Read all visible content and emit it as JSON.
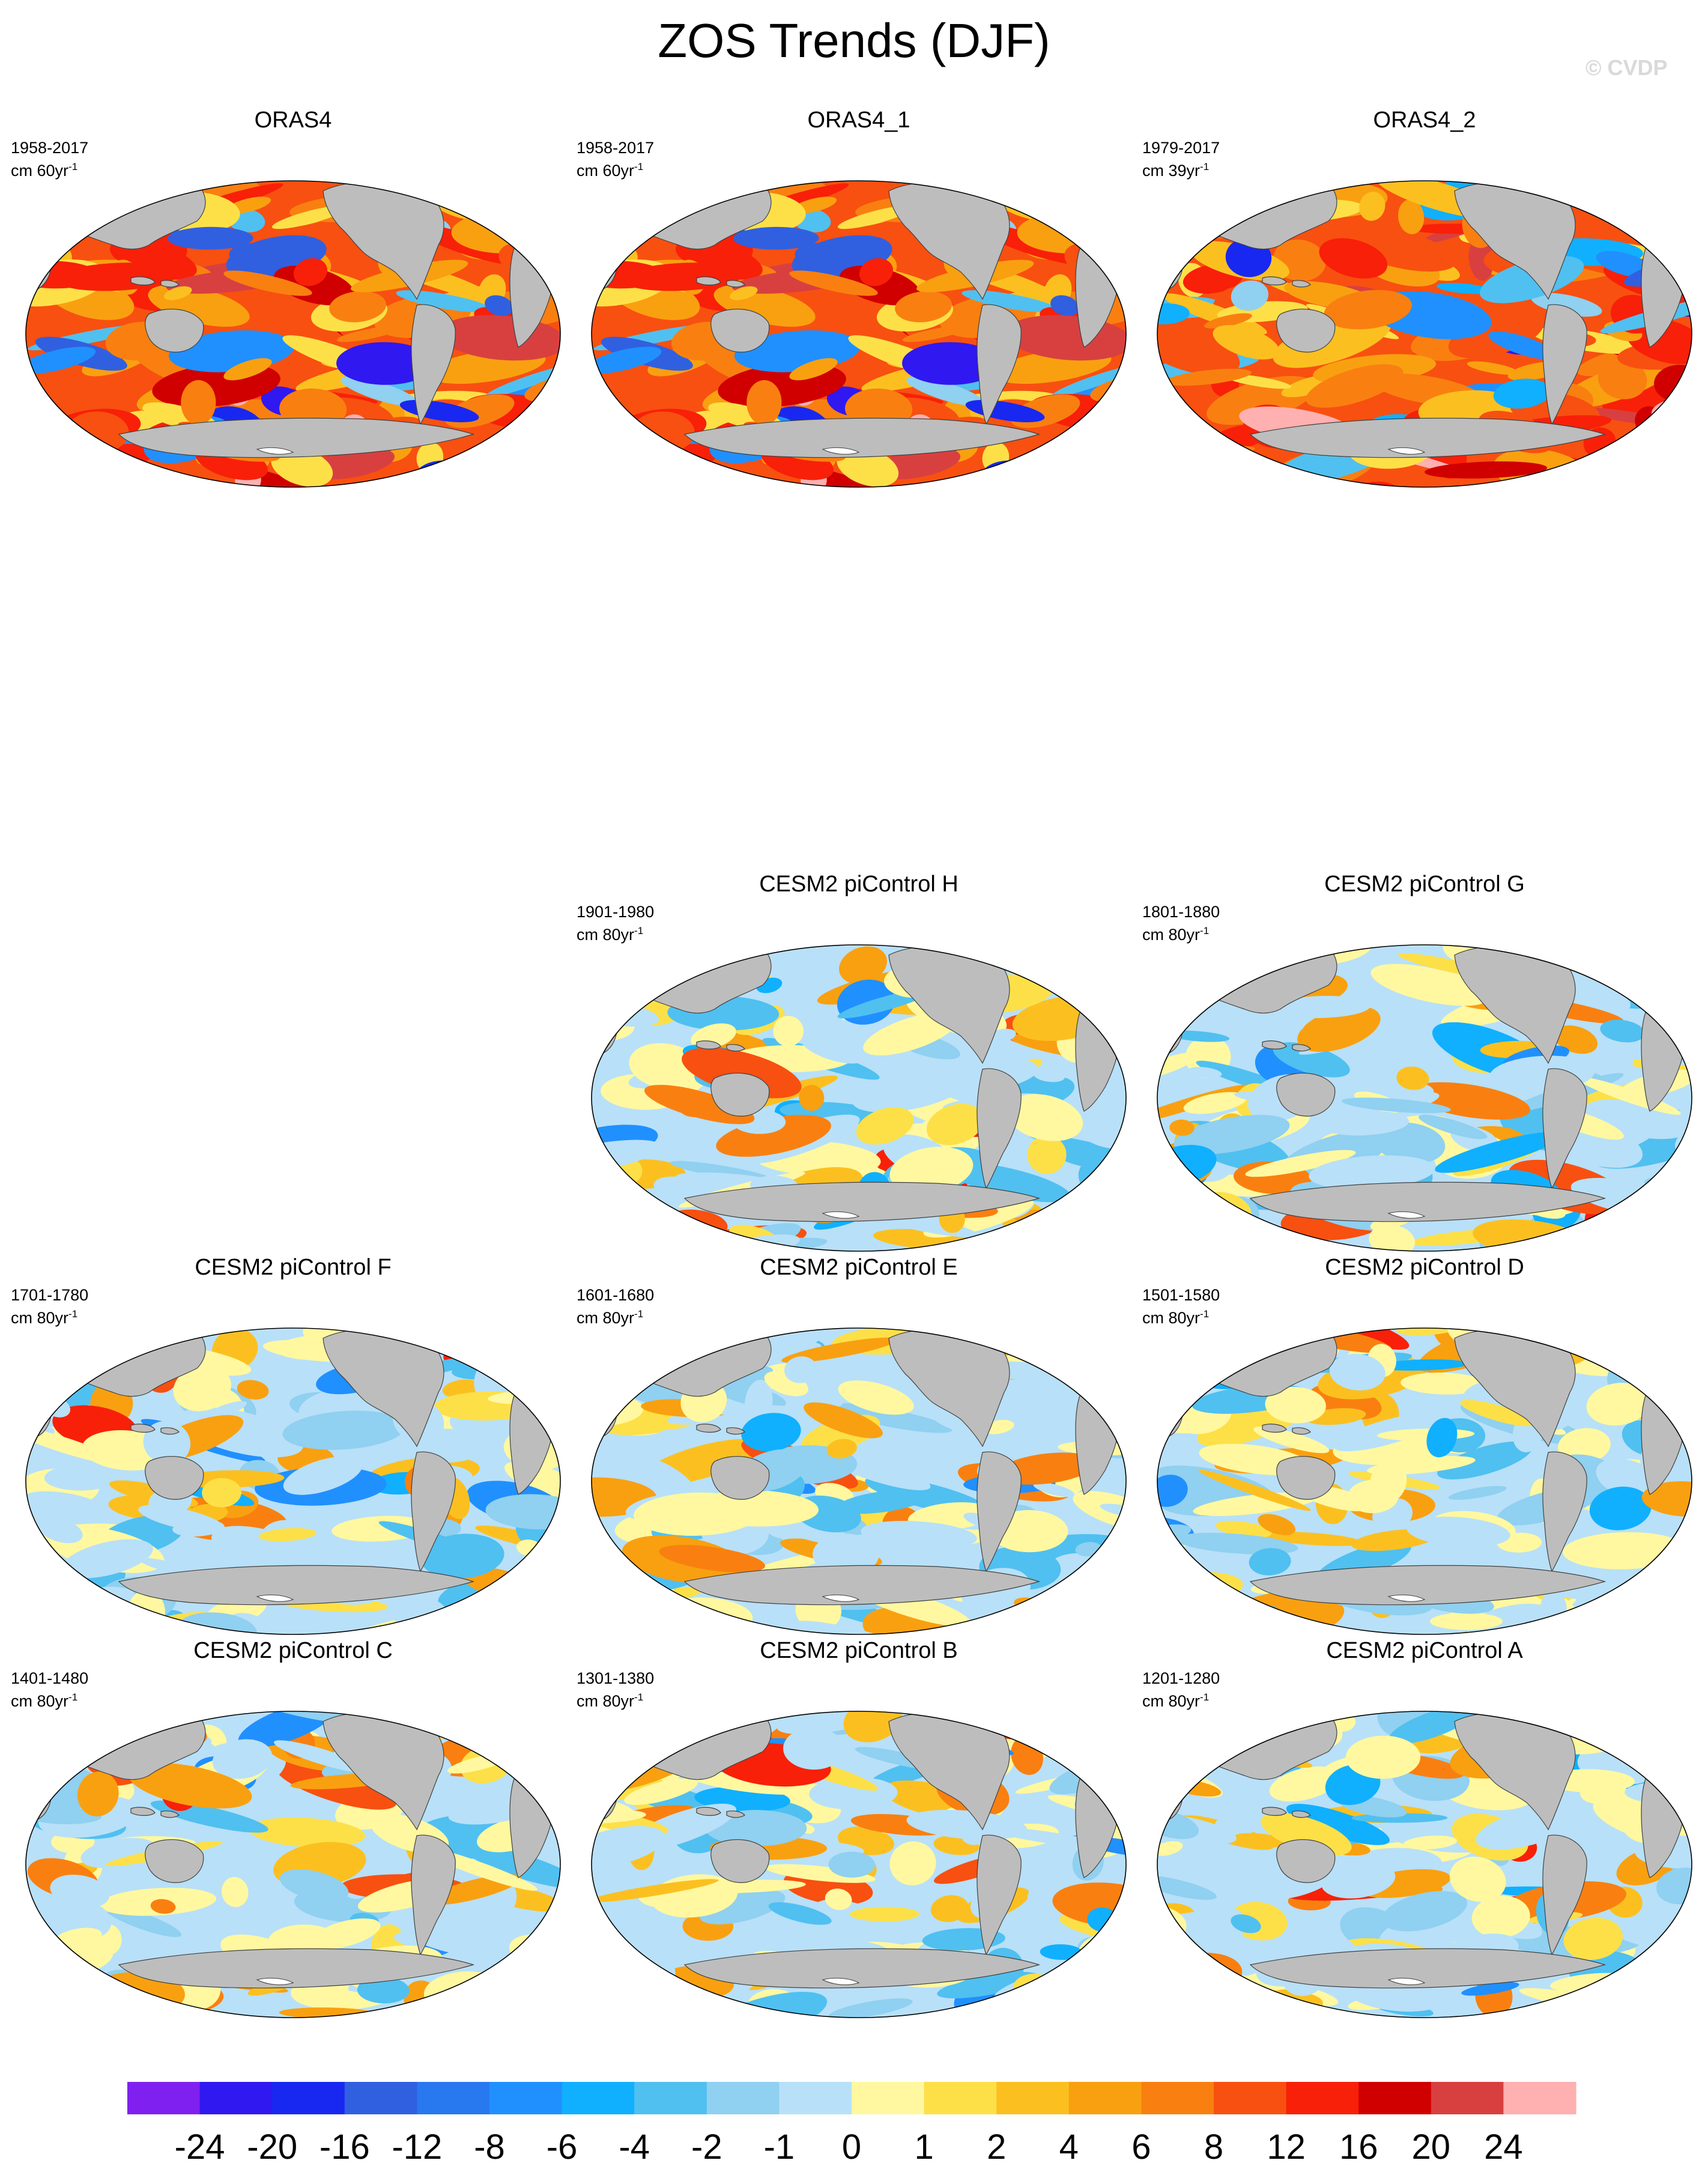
{
  "figure": {
    "title": "ZOS Trends (DJF)",
    "watermark": "© CVDP"
  },
  "colors": {
    "land": "#bdbdbd",
    "coast": "#404040",
    "ice_white": "#ffffff"
  },
  "chart_data": {
    "type": "heatmap",
    "projection": "robinson-world-maps",
    "panels": [
      {
        "id": "orras4",
        "title": "ORAS4",
        "period": "1958-2017",
        "units_prefix": "cm 60yr",
        "units_exp": "-1",
        "regime": "warm",
        "seed": 11
      },
      {
        "id": "orras4_1",
        "title": "ORAS4_1",
        "period": "1958-2017",
        "units_prefix": "cm 60yr",
        "units_exp": "-1",
        "regime": "warm",
        "seed": 11
      },
      {
        "id": "orras4_2",
        "title": "ORAS4_2",
        "period": "1979-2017",
        "units_prefix": "cm 39yr",
        "units_exp": "-1",
        "regime": "warm2",
        "seed": 23
      },
      {
        "id": "ctrl_h",
        "title": "CESM2 piControl H",
        "period": "1901-1980",
        "units_prefix": "cm 80yr",
        "units_exp": "-1",
        "regime": "mixed",
        "seed": 31
      },
      {
        "id": "ctrl_g",
        "title": "CESM2 piControl G",
        "period": "1801-1880",
        "units_prefix": "cm 80yr",
        "units_exp": "-1",
        "regime": "mixed",
        "seed": 37
      },
      {
        "id": "ctrl_f",
        "title": "CESM2 piControl F",
        "period": "1701-1780",
        "units_prefix": "cm 80yr",
        "units_exp": "-1",
        "regime": "mixed",
        "seed": 41
      },
      {
        "id": "ctrl_e",
        "title": "CESM2 piControl E",
        "period": "1601-1680",
        "units_prefix": "cm 80yr",
        "units_exp": "-1",
        "regime": "mixed",
        "seed": 43
      },
      {
        "id": "ctrl_d",
        "title": "CESM2 piControl D",
        "period": "1501-1580",
        "units_prefix": "cm 80yr",
        "units_exp": "-1",
        "regime": "mixed",
        "seed": 47
      },
      {
        "id": "ctrl_c",
        "title": "CESM2 piControl C",
        "period": "1401-1480",
        "units_prefix": "cm 80yr",
        "units_exp": "-1",
        "regime": "mixed",
        "seed": 53
      },
      {
        "id": "ctrl_b",
        "title": "CESM2 piControl B",
        "period": "1301-1380",
        "units_prefix": "cm 80yr",
        "units_exp": "-1",
        "regime": "mixed",
        "seed": 59
      },
      {
        "id": "ctrl_a",
        "title": "CESM2 piControl A",
        "period": "1201-1280",
        "units_prefix": "cm 80yr",
        "units_exp": "-1",
        "regime": "mixed",
        "seed": 61
      }
    ],
    "colorbar": {
      "levels": [
        "-24",
        "-20",
        "-16",
        "-12",
        "-8",
        "-6",
        "-4",
        "-2",
        "-1",
        "0",
        "1",
        "2",
        "4",
        "6",
        "8",
        "12",
        "16",
        "20",
        "24"
      ],
      "colors": [
        "#8020f0",
        "#3018f0",
        "#1828f0",
        "#3060e0",
        "#2878f0",
        "#2090ff",
        "#10b0ff",
        "#50c0f0",
        "#90d0f0",
        "#b8e0f8",
        "#fff8a0",
        "#fde048",
        "#fbc020",
        "#f9a010",
        "#f98010",
        "#f85010",
        "#f82008",
        "#d00000",
        "#d84040",
        "#ffb0b0"
      ]
    }
  }
}
